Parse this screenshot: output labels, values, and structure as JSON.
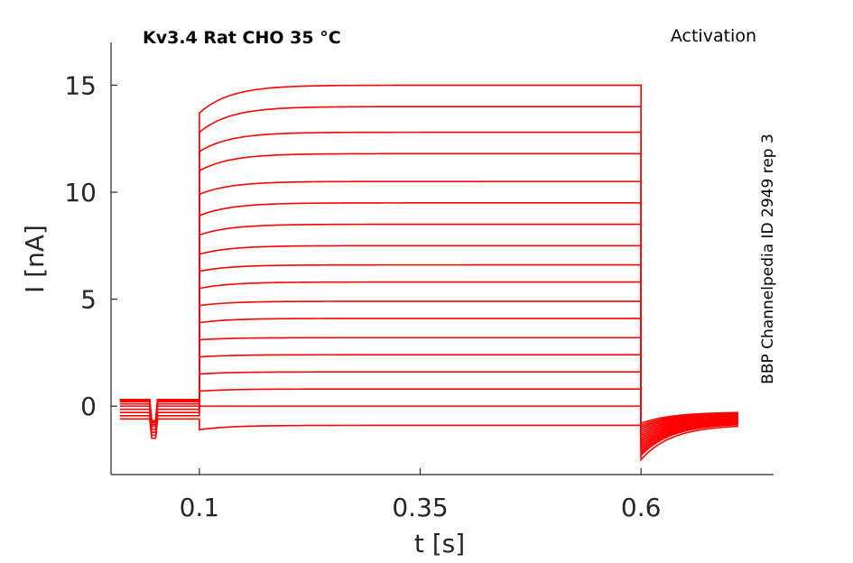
{
  "chart_data": {
    "type": "line",
    "title": "Kv3.4  Rat  CHO  35 °C",
    "subtitle": "Activation",
    "side_annotation": "BBP Channelpedia ID 2949 rep 3",
    "xlabel": "t [s]",
    "ylabel": "I [nA]",
    "xlim": [
      0.0,
      0.75
    ],
    "ylim": [
      -3.2,
      17.0
    ],
    "xticks": [
      0.1,
      0.35,
      0.6
    ],
    "xtick_labels": [
      "0.1",
      "0.35",
      "0.6"
    ],
    "yticks": [
      0,
      5,
      10,
      15
    ],
    "ytick_labels": [
      "0",
      "5",
      "10",
      "15"
    ],
    "grid": false,
    "line_color": "#ff0000",
    "step_start": 0.1,
    "step_end": 0.6,
    "series": [
      {
        "baseline": -0.6,
        "steady": -0.9,
        "peak": -1.1,
        "tail": -1.0
      },
      {
        "baseline": -0.45,
        "steady": 0.0,
        "peak": 0.0,
        "tail": -0.8
      },
      {
        "baseline": -0.3,
        "steady": 0.8,
        "peak": 0.7,
        "tail": -0.9
      },
      {
        "baseline": -0.15,
        "steady": 1.6,
        "peak": 1.5,
        "tail": -1.0
      },
      {
        "baseline": 0.0,
        "steady": 2.4,
        "peak": 2.3,
        "tail": -1.1
      },
      {
        "baseline": 0.1,
        "steady": 3.2,
        "peak": 3.1,
        "tail": -1.2
      },
      {
        "baseline": 0.2,
        "steady": 4.1,
        "peak": 3.9,
        "tail": -1.3
      },
      {
        "baseline": 0.25,
        "steady": 4.9,
        "peak": 4.7,
        "tail": -1.4
      },
      {
        "baseline": 0.3,
        "steady": 5.8,
        "peak": 5.5,
        "tail": -1.5
      },
      {
        "baseline": 0.3,
        "steady": 6.6,
        "peak": 6.3,
        "tail": -1.6
      },
      {
        "baseline": 0.3,
        "steady": 7.5,
        "peak": 7.1,
        "tail": -1.7
      },
      {
        "baseline": 0.3,
        "steady": 8.5,
        "peak": 8.0,
        "tail": -1.8
      },
      {
        "baseline": 0.3,
        "steady": 9.5,
        "peak": 8.9,
        "tail": -1.9
      },
      {
        "baseline": 0.3,
        "steady": 10.5,
        "peak": 9.9,
        "tail": -2.0
      },
      {
        "baseline": 0.3,
        "steady": 11.8,
        "peak": 11.0,
        "tail": -2.1
      },
      {
        "baseline": 0.3,
        "steady": 12.8,
        "peak": 11.9,
        "tail": -2.2
      },
      {
        "baseline": 0.3,
        "steady": 14.0,
        "peak": 12.8,
        "tail": -2.3
      },
      {
        "baseline": 0.3,
        "steady": 15.0,
        "peak": 13.7,
        "tail": -2.5
      }
    ]
  }
}
